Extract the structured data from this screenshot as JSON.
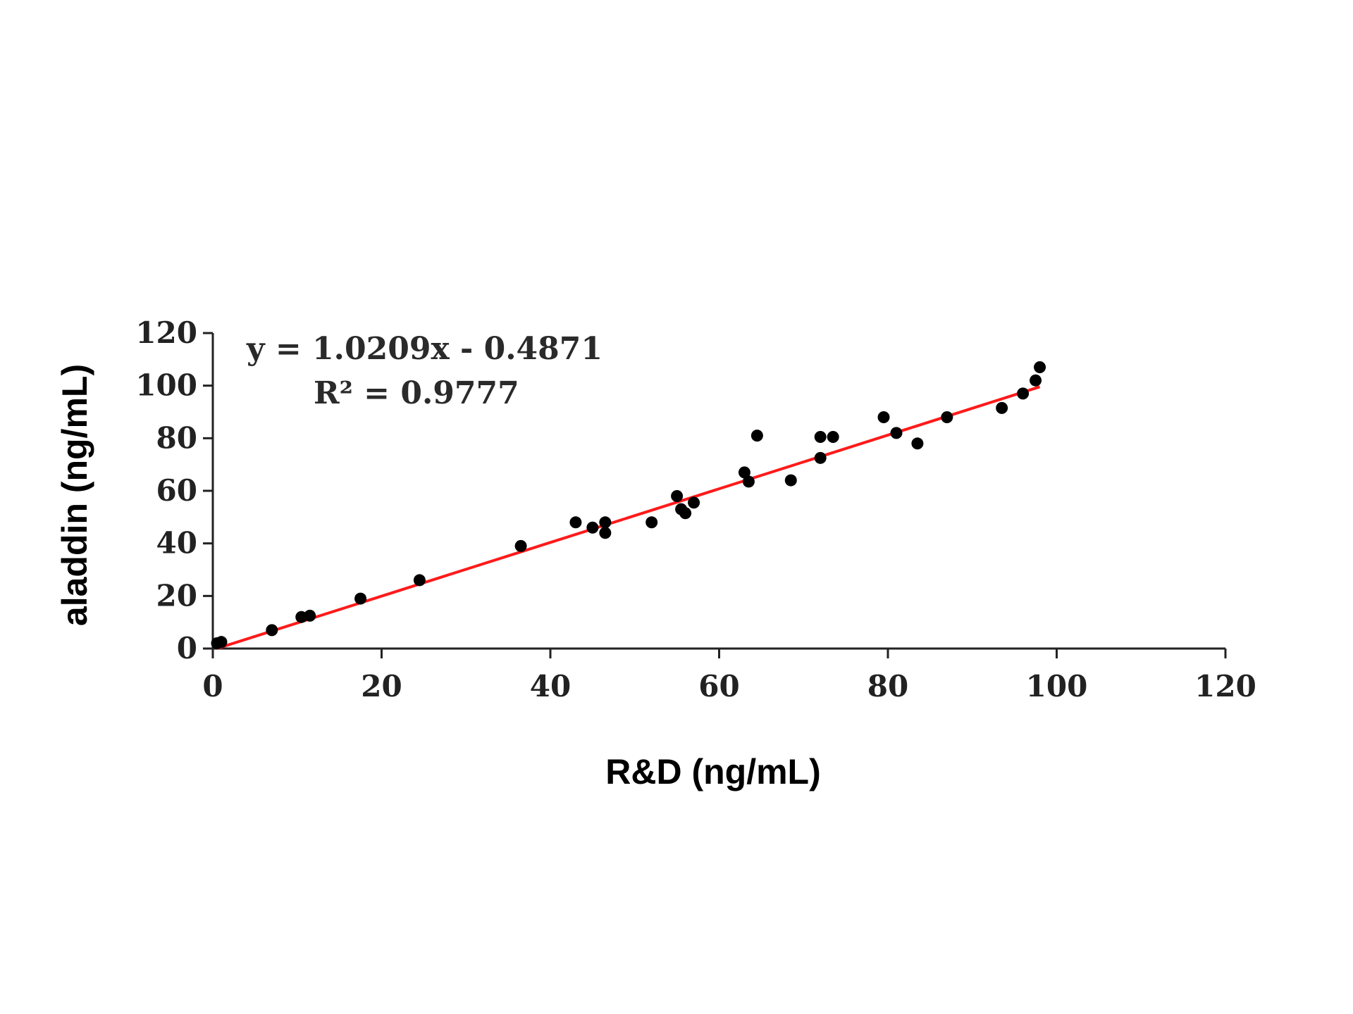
{
  "chart_data": {
    "type": "scatter",
    "title": "",
    "xlabel": "R&D (ng/mL)",
    "ylabel": "aladdin (ng/mL)",
    "xlim": [
      0,
      120
    ],
    "ylim": [
      0,
      120
    ],
    "xticks": [
      "0",
      "20",
      "40",
      "60",
      "80",
      "100",
      "120"
    ],
    "yticks": [
      "0",
      "20",
      "40",
      "60",
      "80",
      "100",
      "120"
    ],
    "grid": false,
    "legend": "none",
    "colors": {
      "points": "#000000",
      "fit": "#ff1a1a"
    },
    "annotation": {
      "equation": "y = 1.0209x - 0.4871",
      "r_squared": "R² = 0.9777"
    },
    "fit": {
      "slope": 1.0209,
      "intercept": -0.4871,
      "x_range": [
        0,
        98
      ]
    },
    "series": [
      {
        "points": [
          [
            0.5,
            2
          ],
          [
            1,
            2.5
          ],
          [
            7,
            7
          ],
          [
            10.5,
            12
          ],
          [
            11.5,
            12.5
          ],
          [
            17.5,
            19
          ],
          [
            24.5,
            26
          ],
          [
            36.5,
            39
          ],
          [
            43,
            48
          ],
          [
            45,
            46
          ],
          [
            46.5,
            44
          ],
          [
            46.5,
            48
          ],
          [
            52,
            48
          ],
          [
            55,
            58
          ],
          [
            55.5,
            53
          ],
          [
            56,
            51.5
          ],
          [
            57,
            55.5
          ],
          [
            63,
            67
          ],
          [
            63.5,
            63.5
          ],
          [
            64.5,
            81
          ],
          [
            68.5,
            64
          ],
          [
            72,
            72.5
          ],
          [
            72,
            80.5
          ],
          [
            73.5,
            80.5
          ],
          [
            79.5,
            88
          ],
          [
            81,
            82
          ],
          [
            83.5,
            78
          ],
          [
            87,
            88
          ],
          [
            93.5,
            91.5
          ],
          [
            96,
            97
          ],
          [
            97.5,
            102
          ],
          [
            98,
            107
          ]
        ]
      }
    ]
  }
}
